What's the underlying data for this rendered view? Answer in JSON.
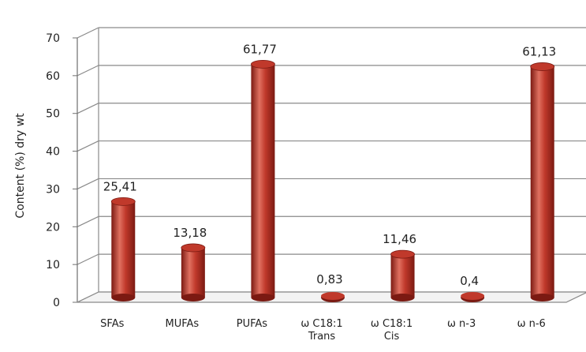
{
  "chart_data": {
    "type": "bar",
    "style": "3d-cylinder",
    "ylabel": "Content (%) dry wt",
    "xlabel": "",
    "title": "",
    "ylim": [
      0,
      70
    ],
    "ytick_step": 10,
    "grid": true,
    "categories": [
      [
        "SFAs"
      ],
      [
        "MUFAs"
      ],
      [
        "PUFAs"
      ],
      [
        "ω C18:1",
        "Trans"
      ],
      [
        "ω C18:1",
        "Cis"
      ],
      [
        "ω n-3"
      ],
      [
        "ω n-6"
      ]
    ],
    "values": [
      25.41,
      13.18,
      61.77,
      0.83,
      11.46,
      0.4,
      61.13
    ],
    "value_labels": [
      "25,41",
      "13,18",
      "61,77",
      "0,83",
      "11,46",
      "0,4",
      "61,13"
    ],
    "colors": {
      "bar": "#c0392b",
      "bar_dark": "#7b1a12",
      "bar_light": "#e07060",
      "grid": "#8a8a8a",
      "axis": "#6f6f6f",
      "text": "#222222"
    }
  }
}
